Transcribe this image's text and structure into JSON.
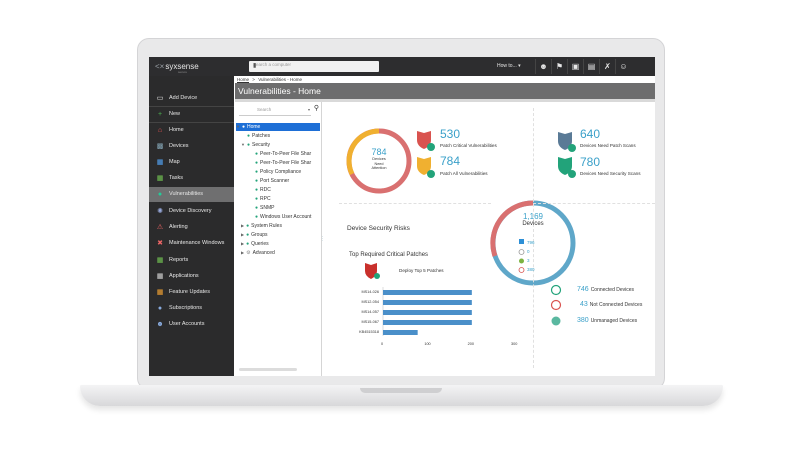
{
  "topbar": {
    "logo": "syxsense",
    "logo_tag": "secure",
    "search_placeholder": "Search a computer",
    "howto_label": "How to...",
    "icons": [
      "user-icon",
      "flag-icon",
      "chat-icon",
      "book-icon",
      "tools-icon",
      "smiley-icon"
    ]
  },
  "sidebar": {
    "items": [
      {
        "label": "Add Device",
        "icon": "monitor-add-icon"
      },
      {
        "label": "New",
        "icon": "plus-icon"
      },
      {
        "label": "Home",
        "icon": "home-icon"
      },
      {
        "label": "Devices",
        "icon": "devices-icon"
      },
      {
        "label": "Map",
        "icon": "map-icon"
      },
      {
        "label": "Tasks",
        "icon": "tasks-icon"
      },
      {
        "label": "Vulnerabilities",
        "icon": "shield-icon"
      },
      {
        "label": "Device Discovery",
        "icon": "discovery-icon"
      },
      {
        "label": "Alerting",
        "icon": "alert-icon"
      },
      {
        "label": "Maintenance Windows",
        "icon": "wrench-icon"
      },
      {
        "label": "Reports",
        "icon": "reports-icon"
      },
      {
        "label": "Applications",
        "icon": "apps-icon"
      },
      {
        "label": "Feature Updates",
        "icon": "windows-icon"
      },
      {
        "label": "Subscriptions",
        "icon": "subscriptions-icon"
      },
      {
        "label": "User Accounts",
        "icon": "users-icon"
      }
    ],
    "active": "Vulnerabilities"
  },
  "breadcrumb": {
    "home": "Home",
    "separator": ">",
    "current": "Vulnerabilities - Home"
  },
  "page_title": "Vulnerabilities - Home",
  "tree": {
    "search_placeholder": "Search",
    "nodes": [
      {
        "label": "Home",
        "level": 0,
        "selected": true
      },
      {
        "label": "Patches",
        "level": 1
      },
      {
        "label": "Security",
        "level": 1
      },
      {
        "label": "Peer-To-Peer File Shar",
        "level": 2
      },
      {
        "label": "Peer-To-Peer File Shar",
        "level": 2
      },
      {
        "label": "Policy Compliance",
        "level": 2
      },
      {
        "label": "Port Scanner",
        "level": 2
      },
      {
        "label": "RDC",
        "level": 2
      },
      {
        "label": "RPC",
        "level": 2
      },
      {
        "label": "SNMP",
        "level": 2
      },
      {
        "label": "Windows User Account",
        "level": 2
      },
      {
        "label": "System Rules",
        "level": 1
      },
      {
        "label": "Groups",
        "level": 1
      },
      {
        "label": "Queries",
        "level": 1
      },
      {
        "label": "Advanced",
        "level": 1
      }
    ]
  },
  "attention": {
    "number": "784",
    "label_line1": "Devices",
    "label_line2": "Need",
    "label_line3": "Attention"
  },
  "stats": {
    "patch_critical": {
      "number": "530",
      "label": "Patch Critical Vulnerabilities"
    },
    "patch_all": {
      "number": "784",
      "label": "Patch All Vulnerabilities"
    },
    "need_patch_scans": {
      "number": "640",
      "label": "Devices Need Patch Scans"
    },
    "need_security_scans": {
      "number": "780",
      "label": "Devices Need Security Scans"
    }
  },
  "device_security_risks": "Device Security Risks",
  "devices_ring": {
    "number": "1,169",
    "label": "Devices",
    "rows": [
      {
        "icon": "windows-icon",
        "value": "796"
      },
      {
        "icon": "mac-icon",
        "value": "0"
      },
      {
        "icon": "android-icon",
        "value": "3"
      },
      {
        "icon": "power-icon",
        "value": "380"
      }
    ]
  },
  "top_patches": {
    "title": "Top Required Critical Patches",
    "deploy_label": "Deploy Top 5 Patches"
  },
  "chart_data": {
    "type": "bar",
    "orientation": "horizontal",
    "categories": [
      "MS14-026",
      "MS12-054",
      "MS14-057",
      "MS15-067",
      "KB4515318"
    ],
    "values": [
      205,
      205,
      205,
      205,
      80
    ],
    "xlim": [
      0,
      300
    ],
    "xticks": [
      "0",
      "100",
      "200",
      "300"
    ],
    "title": "Top Required Critical Patches",
    "color": "#4a8fc9"
  },
  "connections": [
    {
      "value": "746",
      "label": "Connected Devices",
      "icon": "power-green-icon"
    },
    {
      "value": "43",
      "label": "Not Connected Devices",
      "icon": "power-red-icon"
    },
    {
      "value": "380",
      "label": "Unmanaged Devices",
      "icon": "unmanaged-icon"
    }
  ],
  "colors": {
    "accent": "#3aa0c9",
    "green": "#22a37a",
    "red": "#d9534f",
    "orange": "#f0a830",
    "ring_blue": "#5fa7c9",
    "ring_red": "#d97070"
  }
}
